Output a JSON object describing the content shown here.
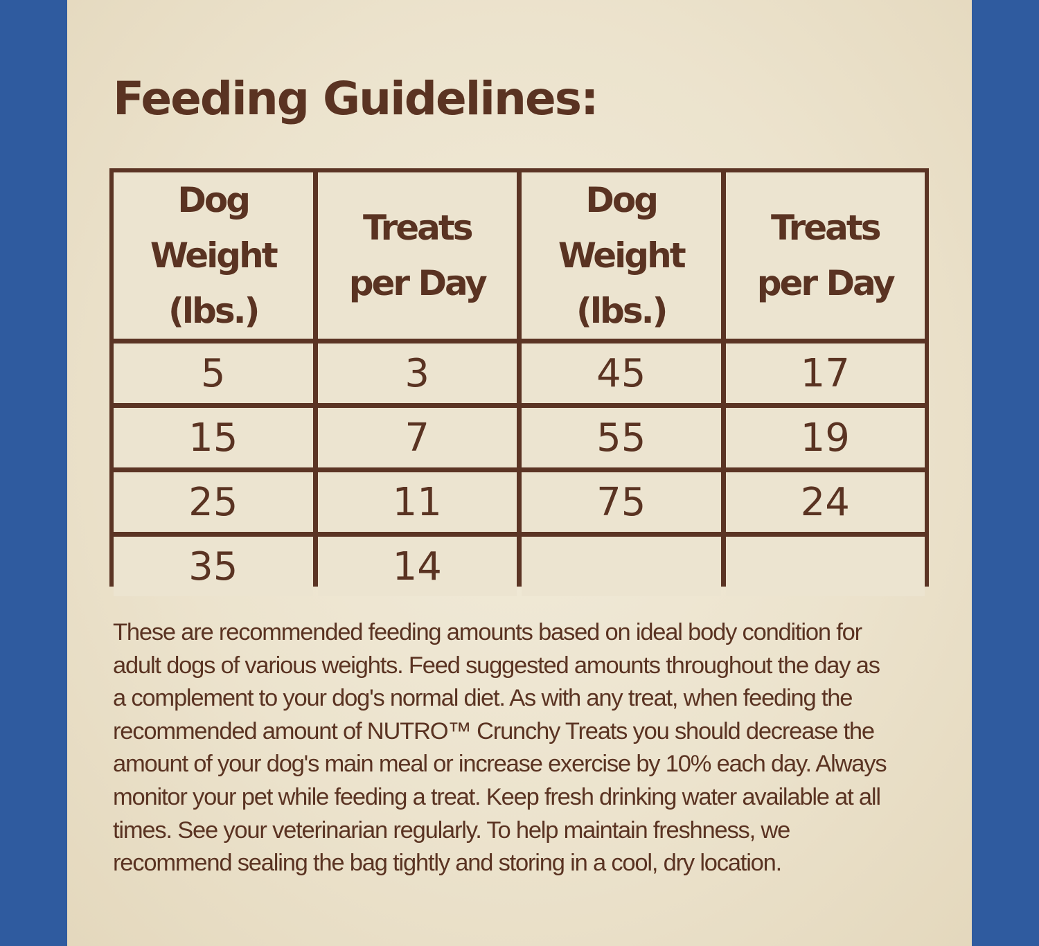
{
  "title": "Feeding Guidelines:",
  "table": {
    "headers": [
      [
        "Dog Weight",
        "(lbs.)"
      ],
      [
        "Treats",
        "per Day"
      ],
      [
        "Dog Weight",
        "(lbs.)"
      ],
      [
        "Treats",
        "per Day"
      ]
    ],
    "rows": [
      [
        "5",
        "3",
        "45",
        "17"
      ],
      [
        "15",
        "7",
        "55",
        "19"
      ],
      [
        "25",
        "11",
        "75",
        "24"
      ],
      [
        "35",
        "14",
        "",
        ""
      ]
    ]
  },
  "paragraph_lines": [
    "These are recommended feeding amounts based on ideal body condition for",
    "adult dogs of various weights. Feed suggested amounts throughout the day as",
    "a complement to your dog's normal diet. As with any treat, when feeding the",
    "recommended amount of NUTRO™ Crunchy Treats you should decrease the",
    "amount of your dog's main meal or increase exercise by 10% each day. Always",
    "monitor your pet while feeding a treat. Keep fresh drinking water available at all",
    "times. See your veterinarian regularly. To help maintain freshness, we",
    "recommend sealing the bag tightly and storing in a cool, dry location."
  ],
  "colors": {
    "border_blue": "#2f5b9f",
    "panel_cream": "#ece4d0",
    "text_brown": "#5a3322"
  }
}
